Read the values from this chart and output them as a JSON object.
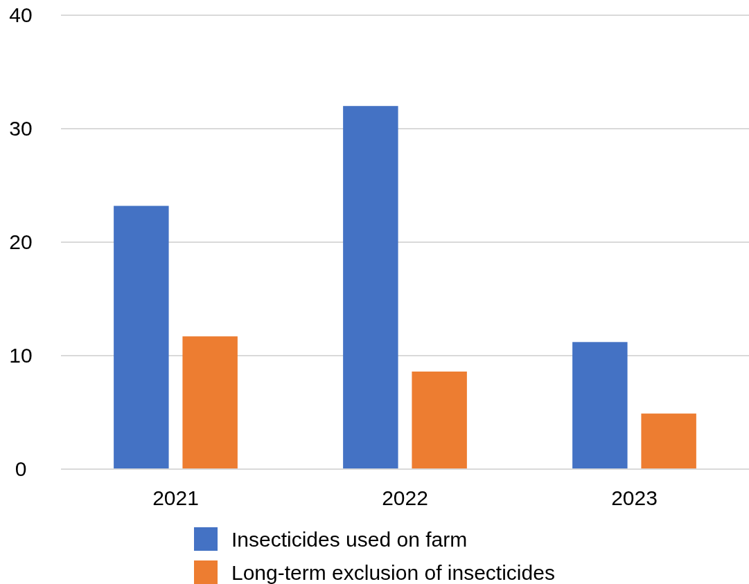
{
  "chart_data": {
    "type": "bar",
    "categories": [
      "2021",
      "2022",
      "2023"
    ],
    "series": [
      {
        "name": "Insecticides used on farm",
        "color": "#4472c4",
        "values": [
          23.2,
          32.0,
          11.2
        ]
      },
      {
        "name": "Long-term exclusion of insecticides",
        "color": "#ed7d31",
        "values": [
          11.7,
          8.6,
          4.9
        ]
      }
    ],
    "ylim": [
      0,
      40
    ],
    "yticks": [
      0,
      10,
      20,
      30,
      40
    ],
    "grid": "y",
    "legend": "bottom"
  }
}
